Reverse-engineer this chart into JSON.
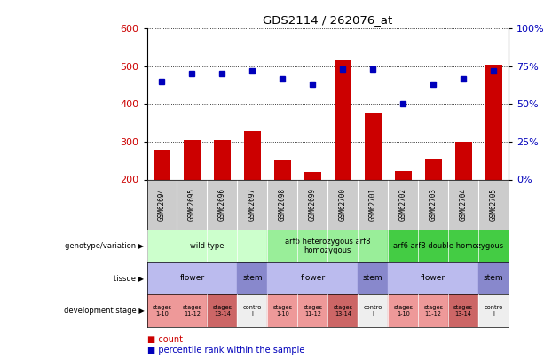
{
  "title": "GDS2114 / 262076_at",
  "samples": [
    "GSM62694",
    "GSM62695",
    "GSM62696",
    "GSM62697",
    "GSM62698",
    "GSM62699",
    "GSM62700",
    "GSM62701",
    "GSM62702",
    "GSM62703",
    "GSM62704",
    "GSM62705"
  ],
  "bar_values": [
    278,
    305,
    305,
    328,
    251,
    221,
    516,
    375,
    222,
    255,
    300,
    505
  ],
  "dot_values": [
    65,
    70,
    70,
    72,
    67,
    63,
    73,
    73,
    50,
    63,
    67,
    72
  ],
  "ylim_left": [
    200,
    600
  ],
  "ylim_right": [
    0,
    100
  ],
  "yticks_left": [
    200,
    300,
    400,
    500,
    600
  ],
  "yticks_right": [
    0,
    25,
    50,
    75,
    100
  ],
  "ytick_labels_right": [
    "0%",
    "25%",
    "50%",
    "75%",
    "100%"
  ],
  "bar_color": "#cc0000",
  "dot_color": "#0000bb",
  "bar_bottom": 200,
  "genotype_groups": [
    {
      "label": "wild type",
      "start": 0,
      "end": 4,
      "color": "#ccffcc"
    },
    {
      "label": "arf6 heterozygous arf8\nhomozygous",
      "start": 4,
      "end": 8,
      "color": "#99ee99"
    },
    {
      "label": "arf6 arf8 double homozygous",
      "start": 8,
      "end": 12,
      "color": "#44cc44"
    }
  ],
  "tissue_groups": [
    {
      "label": "flower",
      "start": 0,
      "end": 3,
      "color": "#bbbbee"
    },
    {
      "label": "stem",
      "start": 3,
      "end": 4,
      "color": "#8888cc"
    },
    {
      "label": "flower",
      "start": 4,
      "end": 7,
      "color": "#bbbbee"
    },
    {
      "label": "stem",
      "start": 7,
      "end": 8,
      "color": "#8888cc"
    },
    {
      "label": "flower",
      "start": 8,
      "end": 11,
      "color": "#bbbbee"
    },
    {
      "label": "stem",
      "start": 11,
      "end": 12,
      "color": "#8888cc"
    }
  ],
  "stage_groups": [
    {
      "label": "stages\n1-10",
      "start": 0,
      "end": 1,
      "color": "#ee9999"
    },
    {
      "label": "stages\n11-12",
      "start": 1,
      "end": 2,
      "color": "#ee9999"
    },
    {
      "label": "stages\n13-14",
      "start": 2,
      "end": 3,
      "color": "#cc6666"
    },
    {
      "label": "contro\nl",
      "start": 3,
      "end": 4,
      "color": "#eeeeee"
    },
    {
      "label": "stages\n1-10",
      "start": 4,
      "end": 5,
      "color": "#ee9999"
    },
    {
      "label": "stages\n11-12",
      "start": 5,
      "end": 6,
      "color": "#ee9999"
    },
    {
      "label": "stages\n13-14",
      "start": 6,
      "end": 7,
      "color": "#cc6666"
    },
    {
      "label": "contro\nl",
      "start": 7,
      "end": 8,
      "color": "#eeeeee"
    },
    {
      "label": "stages\n1-10",
      "start": 8,
      "end": 9,
      "color": "#ee9999"
    },
    {
      "label": "stages\n11-12",
      "start": 9,
      "end": 10,
      "color": "#ee9999"
    },
    {
      "label": "stages\n13-14",
      "start": 10,
      "end": 11,
      "color": "#cc6666"
    },
    {
      "label": "contro\nl",
      "start": 11,
      "end": 12,
      "color": "#eeeeee"
    }
  ],
  "row_labels": [
    "genotype/variation",
    "tissue",
    "development stage"
  ],
  "legend_items": [
    {
      "color": "#cc0000",
      "label": "count"
    },
    {
      "color": "#0000bb",
      "label": "percentile rank within the sample"
    }
  ],
  "sample_bg_color": "#cccccc",
  "left_label_color": "#cc0000",
  "right_label_color": "#0000bb"
}
